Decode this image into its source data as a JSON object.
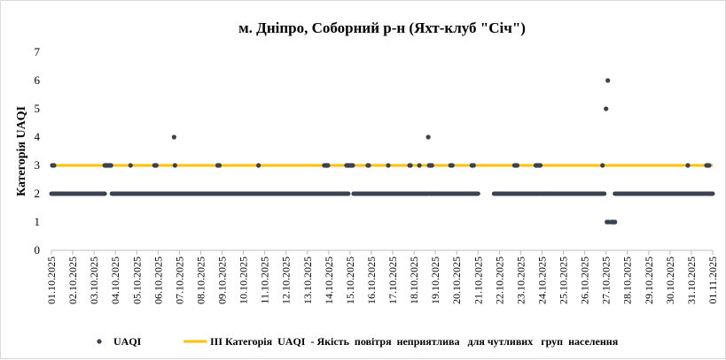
{
  "chart_data": {
    "type": "scatter",
    "title": "м. Дніпро, Соборний р-н (Яхт-клуб \"Січ\")",
    "ylabel": "Категорія UAQI",
    "xlabel": "",
    "ylim": [
      0,
      7
    ],
    "yticks": [
      0,
      1,
      2,
      3,
      4,
      5,
      6,
      7
    ],
    "xlim": [
      "01.10.2025",
      "01.11.2025"
    ],
    "xticks": [
      "01.10.2025",
      "02.10.2025",
      "03.10.2025",
      "04.10.2025",
      "05.10.2025",
      "06.10.2025",
      "07.10.2025",
      "08.10.2025",
      "09.10.2025",
      "10.10.2025",
      "11.10.2025",
      "12.10.2025",
      "13.10.2025",
      "14.10.2025",
      "15.10.2025",
      "16.10.2025",
      "17.10.2025",
      "18.10.2025",
      "19.10.2025",
      "20.10.2025",
      "21.10.2025",
      "22.10.2025",
      "23.10.2025",
      "24.10.2025",
      "25.10.2025",
      "26.10.2025",
      "27.10.2025",
      "28.10.2025",
      "29.10.2025",
      "30.10.2025",
      "31.10.2025",
      "01.11.2025"
    ],
    "grid": false,
    "legend_position": "bottom",
    "series": [
      {
        "name": "UAQI",
        "type": "scatter",
        "color": "#3b4250",
        "baseline_value": 2,
        "baseline_ranges": [
          [
            "01.10.2025 00:00",
            "21.10.2025 00:00"
          ],
          [
            "21.10.2025 18:00",
            "01.11.2025 00:00"
          ]
        ],
        "baseline_gaps": [
          [
            "03.10.2025 12:00",
            "03.10.2025 20:00"
          ],
          [
            "14.10.2025 22:00",
            "15.10.2025 04:00"
          ],
          [
            "18.10.2025 16:00",
            "18.10.2025 18:00"
          ],
          [
            "23.10.2025 20:00",
            "23.10.2025 22:00"
          ],
          [
            "26.10.2025 22:00",
            "27.10.2025 10:00"
          ]
        ],
        "points": [
          {
            "x": "01.10.2025 01:00",
            "y": 3
          },
          {
            "x": "01.10.2025 02:00",
            "y": 3
          },
          {
            "x": "01.10.2025 03:00",
            "y": 3
          },
          {
            "x": "03.10.2025 12:00",
            "y": 3
          },
          {
            "x": "03.10.2025 13:00",
            "y": 3
          },
          {
            "x": "03.10.2025 14:00",
            "y": 3
          },
          {
            "x": "03.10.2025 15:00",
            "y": 3
          },
          {
            "x": "03.10.2025 16:00",
            "y": 3
          },
          {
            "x": "03.10.2025 17:00",
            "y": 3
          },
          {
            "x": "03.10.2025 18:00",
            "y": 3
          },
          {
            "x": "03.10.2025 19:00",
            "y": 3
          },
          {
            "x": "04.10.2025 17:00",
            "y": 3
          },
          {
            "x": "05.10.2025 20:00",
            "y": 3
          },
          {
            "x": "05.10.2025 21:00",
            "y": 3
          },
          {
            "x": "05.10.2025 22:00",
            "y": 3
          },
          {
            "x": "06.10.2025 18:00",
            "y": 4
          },
          {
            "x": "06.10.2025 19:00",
            "y": 3
          },
          {
            "x": "08.10.2025 19:00",
            "y": 3
          },
          {
            "x": "08.10.2025 20:00",
            "y": 3
          },
          {
            "x": "08.10.2025 21:00",
            "y": 3
          },
          {
            "x": "10.10.2025 17:00",
            "y": 3
          },
          {
            "x": "13.10.2025 19:00",
            "y": 3
          },
          {
            "x": "13.10.2025 20:00",
            "y": 3
          },
          {
            "x": "13.10.2025 21:00",
            "y": 3
          },
          {
            "x": "13.10.2025 22:00",
            "y": 3
          },
          {
            "x": "13.10.2025 23:00",
            "y": 3
          },
          {
            "x": "14.10.2025 20:00",
            "y": 3
          },
          {
            "x": "14.10.2025 21:00",
            "y": 3
          },
          {
            "x": "14.10.2025 22:00",
            "y": 3
          },
          {
            "x": "14.10.2025 23:00",
            "y": 3
          },
          {
            "x": "15.10.2025 00:00",
            "y": 3
          },
          {
            "x": "15.10.2025 01:00",
            "y": 3
          },
          {
            "x": "15.10.2025 02:00",
            "y": 3
          },
          {
            "x": "15.10.2025 03:00",
            "y": 3
          },
          {
            "x": "15.10.2025 20:00",
            "y": 3
          },
          {
            "x": "15.10.2025 21:00",
            "y": 3
          },
          {
            "x": "16.10.2025 19:00",
            "y": 3
          },
          {
            "x": "17.10.2025 19:00",
            "y": 3
          },
          {
            "x": "17.10.2025 20:00",
            "y": 3
          },
          {
            "x": "18.10.2025 06:00",
            "y": 3
          },
          {
            "x": "18.10.2025 16:00",
            "y": 4
          },
          {
            "x": "18.10.2025 17:00",
            "y": 3
          },
          {
            "x": "18.10.2025 18:00",
            "y": 3
          },
          {
            "x": "18.10.2025 19:00",
            "y": 3
          },
          {
            "x": "18.10.2025 20:00",
            "y": 3
          },
          {
            "x": "19.10.2025 17:00",
            "y": 3
          },
          {
            "x": "19.10.2025 18:00",
            "y": 3
          },
          {
            "x": "19.10.2025 19:00",
            "y": 3
          },
          {
            "x": "20.10.2025 17:00",
            "y": 3
          },
          {
            "x": "20.10.2025 18:00",
            "y": 3
          },
          {
            "x": "20.10.2025 19:00",
            "y": 3
          },
          {
            "x": "22.10.2025 17:00",
            "y": 3
          },
          {
            "x": "22.10.2025 18:00",
            "y": 3
          },
          {
            "x": "22.10.2025 19:00",
            "y": 3
          },
          {
            "x": "22.10.2025 20:00",
            "y": 3
          },
          {
            "x": "23.10.2025 17:00",
            "y": 3
          },
          {
            "x": "23.10.2025 18:00",
            "y": 3
          },
          {
            "x": "23.10.2025 19:00",
            "y": 3
          },
          {
            "x": "23.10.2025 20:00",
            "y": 3
          },
          {
            "x": "23.10.2025 21:00",
            "y": 3
          },
          {
            "x": "23.10.2025 22:00",
            "y": 3
          },
          {
            "x": "26.10.2025 20:00",
            "y": 3
          },
          {
            "x": "27.10.2025 00:00",
            "y": 5
          },
          {
            "x": "27.10.2025 01:00",
            "y": 1
          },
          {
            "x": "27.10.2025 02:00",
            "y": 6
          },
          {
            "x": "27.10.2025 03:00",
            "y": 1
          },
          {
            "x": "27.10.2025 06:00",
            "y": 1
          },
          {
            "x": "27.10.2025 07:00",
            "y": 1
          },
          {
            "x": "27.10.2025 08:00",
            "y": 1
          },
          {
            "x": "27.10.2025 09:00",
            "y": 1
          },
          {
            "x": "27.10.2025 10:00",
            "y": 1
          },
          {
            "x": "30.10.2025 20:00",
            "y": 3
          },
          {
            "x": "31.10.2025 17:00",
            "y": 3
          },
          {
            "x": "31.10.2025 18:00",
            "y": 3
          },
          {
            "x": "31.10.2025 19:00",
            "y": 3
          },
          {
            "x": "31.10.2025 20:00",
            "y": 3
          }
        ]
      },
      {
        "name": "III Категорія  UAQI  - Якість  повітря  неприятлива   для чутливих   груп  населення",
        "type": "line",
        "color": "#ffc000",
        "y": 3
      }
    ]
  }
}
